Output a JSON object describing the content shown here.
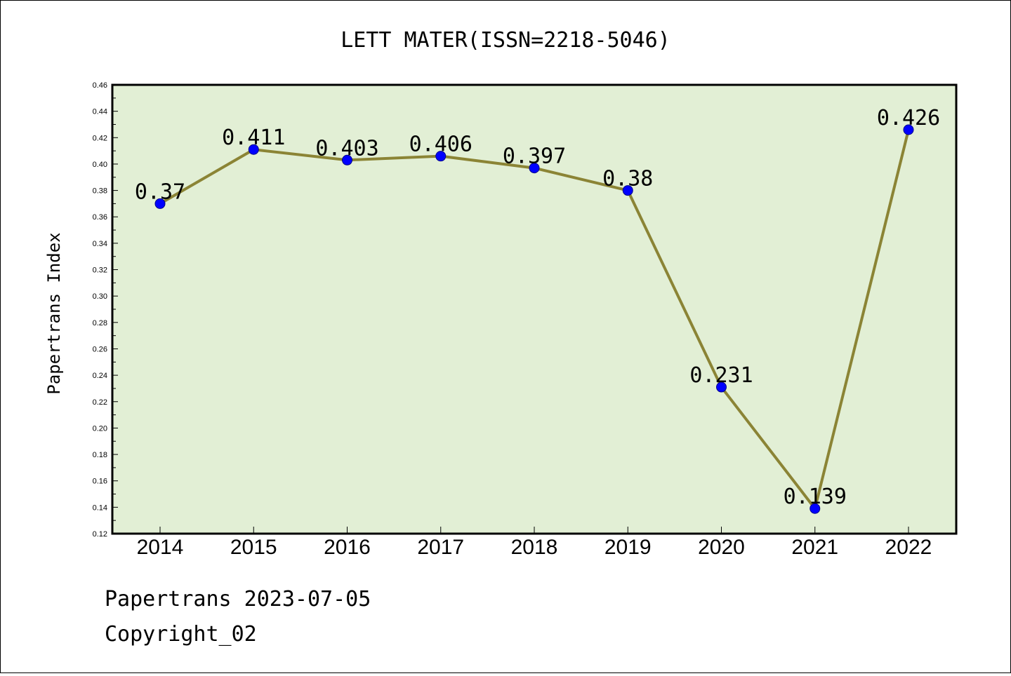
{
  "title": "LETT MATER(ISSN=2218-5046)",
  "footer": {
    "line1": "Papertrans 2023-07-05",
    "line2": "Copyright_02"
  },
  "colors": {
    "plot_background": "#e2efd5",
    "line": "#8b8435",
    "marker": "#0000ff"
  },
  "chart_data": {
    "type": "line",
    "title": "LETT MATER(ISSN=2218-5046)",
    "xlabel": "",
    "ylabel": "Papertrans Index",
    "categories": [
      "2014",
      "2015",
      "2016",
      "2017",
      "2018",
      "2019",
      "2020",
      "2021",
      "2022"
    ],
    "series": [
      {
        "values": [
          0.37,
          0.411,
          0.403,
          0.406,
          0.397,
          0.38,
          0.231,
          0.139,
          0.426
        ],
        "labels": [
          "0.37",
          "0.411",
          "0.403",
          "0.406",
          "0.397",
          "0.38",
          "0.231",
          "0.139",
          "0.426"
        ]
      }
    ],
    "ylim": [
      0.12,
      0.46
    ],
    "yticks": [
      "0.12",
      "0.14",
      "0.16",
      "0.18",
      "0.20",
      "0.22",
      "0.24",
      "0.26",
      "0.28",
      "0.30",
      "0.32",
      "0.34",
      "0.36",
      "0.38",
      "0.40",
      "0.42",
      "0.44",
      "0.46"
    ],
    "grid": false,
    "legend": "none"
  }
}
